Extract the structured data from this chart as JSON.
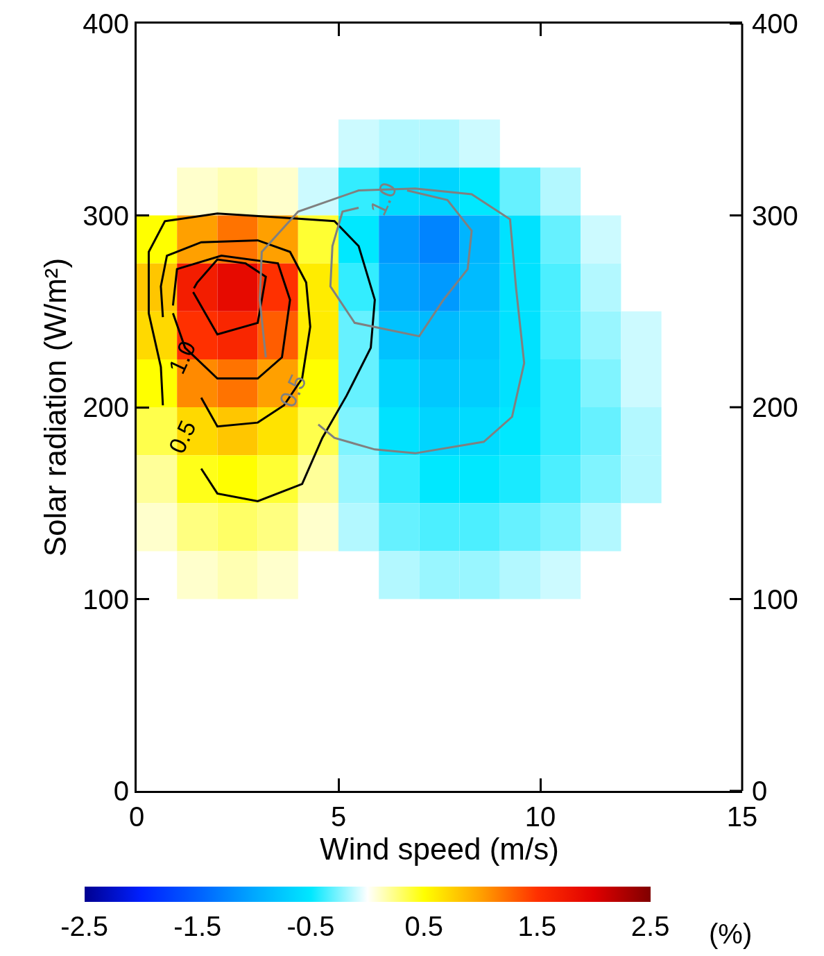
{
  "chart_data": {
    "type": "heatmap",
    "xlabel": "Wind speed (m/s)",
    "ylabel": "Solar radiation (W/m²)",
    "clabel": "(%)",
    "xlim": [
      0,
      15
    ],
    "xticks": [
      0,
      5,
      10,
      15
    ],
    "ylim": [
      0,
      400
    ],
    "yticks": [
      0,
      100,
      200,
      300,
      400
    ],
    "y2lim": [
      0,
      400
    ],
    "y2ticks": [
      0,
      100,
      200,
      300,
      400
    ],
    "clim": [
      -2.5,
      2.5
    ],
    "cticks": [
      -2.5,
      -1.5,
      -0.5,
      0.5,
      1.5,
      2.5
    ],
    "colors": [
      "#000090",
      "#0020ff",
      "#0060ff",
      "#00a8ff",
      "#00e8ff",
      "#ffffff",
      "#ffff00",
      "#ffa000",
      "#ff3000",
      "#e00000",
      "#800000"
    ],
    "x": [
      0.5,
      1.5,
      2.5,
      3.5,
      4.5,
      5.5,
      6.5,
      7.5,
      8.5,
      9.5,
      10.5,
      11.5,
      12.5
    ],
    "y": [
      337.5,
      312.5,
      287.5,
      262.5,
      237.5,
      212.5,
      187.5,
      162.5,
      137.5,
      112.5
    ],
    "cells": [
      [
        null,
        null,
        null,
        null,
        null,
        -0.1,
        -0.15,
        -0.15,
        -0.1,
        null,
        null,
        null,
        null
      ],
      [
        null,
        0.1,
        0.15,
        0.1,
        -0.1,
        -0.4,
        -0.6,
        -0.65,
        -0.5,
        -0.3,
        -0.15,
        null,
        null
      ],
      [
        0.5,
        1.0,
        1.2,
        1.0,
        0.4,
        -0.5,
        -1.1,
        -1.25,
        -0.9,
        -0.55,
        -0.3,
        -0.1,
        null
      ],
      [
        0.8,
        1.7,
        1.9,
        1.5,
        0.6,
        -0.4,
        -1.0,
        -1.1,
        -0.85,
        -0.55,
        -0.35,
        -0.15,
        null
      ],
      [
        0.7,
        1.5,
        1.6,
        1.3,
        0.6,
        -0.3,
        -0.8,
        -0.85,
        -0.75,
        -0.55,
        -0.35,
        -0.2,
        -0.1
      ],
      [
        0.5,
        1.1,
        1.2,
        1.0,
        0.5,
        -0.3,
        -0.65,
        -0.75,
        -0.7,
        -0.55,
        -0.4,
        -0.25,
        -0.1
      ],
      [
        0.35,
        0.7,
        0.8,
        0.65,
        0.35,
        -0.25,
        -0.55,
        -0.65,
        -0.6,
        -0.5,
        -0.4,
        -0.3,
        -0.15
      ],
      [
        0.2,
        0.45,
        0.5,
        0.4,
        0.2,
        -0.2,
        -0.4,
        -0.5,
        -0.5,
        -0.45,
        -0.35,
        -0.25,
        -0.15
      ],
      [
        0.1,
        0.25,
        0.3,
        0.25,
        0.1,
        -0.15,
        -0.3,
        -0.35,
        -0.35,
        -0.3,
        -0.25,
        -0.15,
        null
      ],
      [
        null,
        0.1,
        0.15,
        0.1,
        null,
        null,
        -0.15,
        -0.2,
        -0.2,
        -0.15,
        -0.1,
        null,
        null
      ]
    ],
    "series": [
      {
        "type": "line",
        "name": "0.5",
        "color": "#000000",
        "x": [
          1.6,
          2.0,
          3.0,
          4.1,
          4.6,
          5.2,
          5.8,
          5.9,
          5.5,
          4.9,
          3.5,
          2.0,
          0.7,
          0.3,
          0.3,
          0.6,
          0.65
        ],
        "values": [
          168,
          155,
          151,
          160,
          184,
          206,
          231,
          256,
          284,
          297,
          299,
          301,
          297,
          281,
          249,
          221,
          201
        ]
      },
      {
        "type": "line",
        "name": "1.0",
        "color": "#000000",
        "x": [
          1.6,
          2.0,
          3.0,
          3.65,
          4.1,
          4.3,
          4.2,
          3.8,
          3.0,
          1.6,
          0.75,
          0.6,
          0.65
        ],
        "values": [
          205,
          190,
          192,
          201,
          215,
          242,
          265,
          281,
          287,
          286,
          279,
          263,
          247
        ]
      },
      {
        "type": "line",
        "color": "#000000",
        "x": [
          0.9,
          1.2,
          2.0,
          3.0,
          3.6,
          3.8,
          3.5,
          2.1,
          1.0,
          0.9
        ],
        "values": [
          249,
          231,
          215,
          215,
          226,
          256,
          275,
          279,
          272,
          253
        ]
      },
      {
        "type": "line",
        "color": "#000000",
        "x": [
          1.4,
          2.0,
          3.0,
          3.2,
          2.7,
          2.0,
          1.5,
          1.42
        ],
        "values": [
          260,
          238,
          244,
          268,
          275,
          277,
          265,
          262
        ]
      },
      {
        "type": "line",
        "name": "0.5",
        "color": "#808080",
        "x": [
          3.2,
          3.05,
          3.1,
          4.0,
          5.5,
          6.9,
          8.3,
          9.25,
          9.4,
          9.6,
          9.3,
          8.6,
          6.9,
          5.9,
          4.9,
          4.5
        ],
        "values": [
          226,
          256,
          281,
          302,
          313,
          314,
          311,
          298,
          262,
          223,
          195,
          182,
          176,
          178,
          184,
          191
        ]
      },
      {
        "type": "line",
        "name": "1.0",
        "color": "#808080",
        "x": [
          5.5,
          5.1,
          4.85,
          4.8,
          5.4,
          7.0,
          7.6,
          8.2,
          8.3,
          7.7,
          6.7
        ],
        "values": [
          304,
          302,
          284,
          263,
          244,
          237,
          256,
          272,
          292,
          308,
          313
        ]
      }
    ],
    "line_style": "solid"
  }
}
